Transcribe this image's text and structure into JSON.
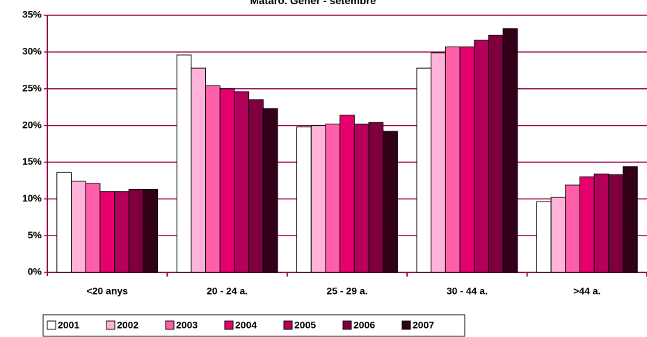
{
  "chart_data": {
    "type": "bar",
    "title": "Mataró. Gener - setembre",
    "categories": [
      "<20 anys",
      "20 - 24 a.",
      "25 - 29 a.",
      "30 - 44 a.",
      ">44 a."
    ],
    "series": [
      {
        "name": "2001",
        "color": "#ffffff",
        "values": [
          13.6,
          29.6,
          19.8,
          27.8,
          9.6
        ]
      },
      {
        "name": "2002",
        "color": "#ffb3d9",
        "values": [
          12.4,
          27.8,
          20.0,
          29.9,
          10.2
        ]
      },
      {
        "name": "2003",
        "color": "#ff5fa8",
        "values": [
          12.1,
          25.4,
          20.2,
          30.7,
          11.9
        ]
      },
      {
        "name": "2004",
        "color": "#e6006e",
        "values": [
          11.0,
          25.0,
          21.4,
          30.7,
          13.0
        ]
      },
      {
        "name": "2005",
        "color": "#b3005a",
        "values": [
          11.0,
          24.6,
          20.2,
          31.6,
          13.4
        ]
      },
      {
        "name": "2006",
        "color": "#80003f",
        "values": [
          11.3,
          23.5,
          20.4,
          32.3,
          13.3
        ]
      },
      {
        "name": "2007",
        "color": "#33001a",
        "values": [
          11.3,
          22.3,
          19.2,
          33.2,
          14.4
        ]
      }
    ],
    "ylim": [
      0,
      35
    ],
    "yticks": [
      {
        "value": 0,
        "label": "0%"
      },
      {
        "value": 5,
        "label": "5%"
      },
      {
        "value": 10,
        "label": "10%"
      },
      {
        "value": 15,
        "label": "15%"
      },
      {
        "value": 20,
        "label": "20%"
      },
      {
        "value": 25,
        "label": "25%"
      },
      {
        "value": 30,
        "label": "30%"
      },
      {
        "value": 35,
        "label": "35%"
      }
    ],
    "grid": true,
    "legend": "bottom"
  }
}
